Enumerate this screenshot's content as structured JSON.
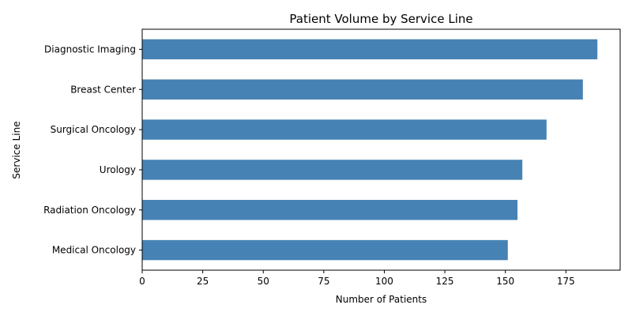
{
  "chart_data": {
    "type": "bar",
    "orientation": "horizontal",
    "title": "Patient Volume by Service Line",
    "xlabel": "Number of Patients",
    "ylabel": "Service Line",
    "categories": [
      "Medical Oncology",
      "Radiation Oncology",
      "Urology",
      "Surgical Oncology",
      "Breast Center",
      "Diagnostic Imaging"
    ],
    "values": [
      151,
      155,
      157,
      167,
      182,
      188
    ],
    "xlim": [
      0,
      197.4
    ],
    "xticks": [
      0,
      25,
      50,
      75,
      100,
      125,
      150,
      175
    ],
    "grid": false,
    "legend": "none",
    "bar_color": "#4682b4"
  }
}
